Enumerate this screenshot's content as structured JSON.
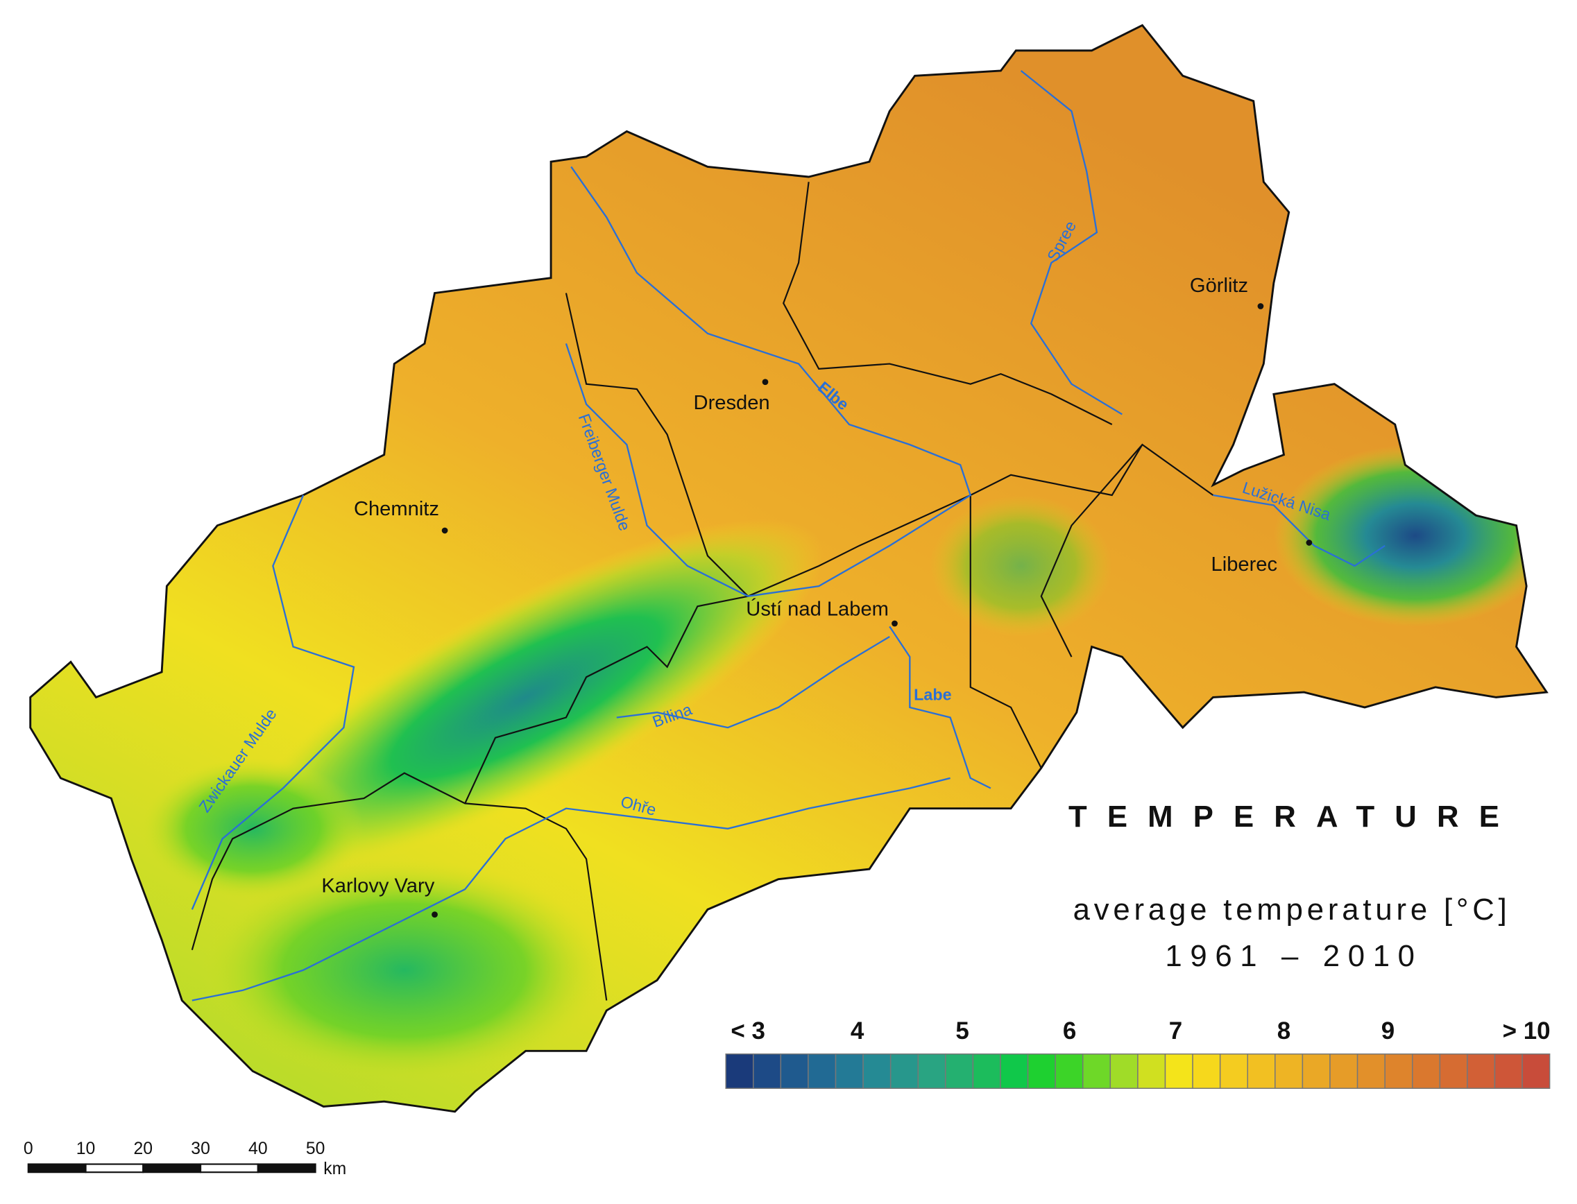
{
  "title": "TEMPERATURE",
  "subtitle": "average temperature [°C]",
  "period": "1961 – 2010",
  "legend": {
    "labels": [
      "< 3",
      "4",
      "5",
      "6",
      "7",
      "8",
      "9",
      "> 10"
    ],
    "colors": [
      "#1a3a7a",
      "#1d4a86",
      "#1f5a8e",
      "#216a94",
      "#237a96",
      "#258a94",
      "#27978c",
      "#29a482",
      "#24b070",
      "#1cbc5c",
      "#10c84a",
      "#1ed030",
      "#3cd428",
      "#6ed828",
      "#a0dc28",
      "#d0e020",
      "#f4e41a",
      "#f6d81c",
      "#f4cc20",
      "#f2c022",
      "#eeb424",
      "#eaa826",
      "#e69c28",
      "#e2902a",
      "#de842c",
      "#da782e",
      "#d66c32",
      "#d26036",
      "#ce5638",
      "#c84c3a"
    ]
  },
  "cities": [
    "Chemnitz",
    "Dresden",
    "Görlitz",
    "Liberec",
    "Ústí nad Labem",
    "Karlovy Vary"
  ],
  "rivers": [
    "Elbe",
    "Spree",
    "Freiberger Mulde",
    "Zwickauer Mulde",
    "Bílina",
    "Ohře",
    "Labe",
    "Lužická Nisa"
  ],
  "scale_bar": {
    "ticks": [
      0,
      10,
      20,
      30,
      40,
      50
    ],
    "unit": "km"
  }
}
